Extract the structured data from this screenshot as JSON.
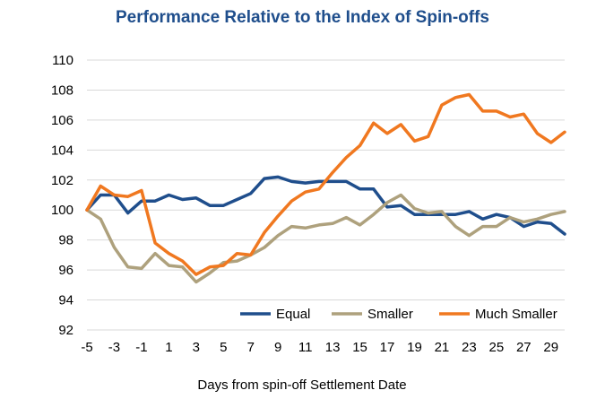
{
  "chart_data": {
    "type": "line",
    "title": "Performance Relative to the Index of Spin-offs",
    "xlabel": "Days from spin-off Settlement Date",
    "ylabel": "",
    "xlim": [
      -5,
      30
    ],
    "ylim": [
      92,
      110
    ],
    "x_ticks": [
      -5,
      -3,
      -1,
      1,
      3,
      5,
      7,
      9,
      11,
      13,
      15,
      17,
      19,
      21,
      23,
      25,
      27,
      29
    ],
    "y_ticks": [
      92,
      94,
      96,
      98,
      100,
      102,
      104,
      106,
      108,
      110
    ],
    "grid": "horizontal",
    "legend_position": "bottom-right",
    "x": [
      -5,
      -4,
      -3,
      -2,
      -1,
      0,
      1,
      2,
      3,
      4,
      5,
      6,
      7,
      8,
      9,
      10,
      11,
      12,
      13,
      14,
      15,
      16,
      17,
      18,
      19,
      20,
      21,
      22,
      23,
      24,
      25,
      26,
      27,
      28,
      29,
      30
    ],
    "series": [
      {
        "name": "Equal",
        "color": "#1f4e8c",
        "values": [
          100.0,
          101.0,
          101.0,
          99.8,
          100.6,
          100.6,
          101.0,
          100.7,
          100.8,
          100.3,
          100.3,
          100.7,
          101.1,
          102.1,
          102.2,
          101.9,
          101.8,
          101.9,
          101.9,
          101.9,
          101.4,
          101.4,
          100.2,
          100.3,
          99.7,
          99.7,
          99.7,
          99.7,
          99.9,
          99.4,
          99.7,
          99.5,
          98.9,
          99.2,
          99.1,
          98.4
        ]
      },
      {
        "name": "Smaller",
        "color": "#aea17d",
        "values": [
          100.0,
          99.4,
          97.5,
          96.2,
          96.1,
          97.1,
          96.3,
          96.2,
          95.2,
          95.8,
          96.5,
          96.6,
          97.0,
          97.5,
          98.3,
          98.9,
          98.8,
          99.0,
          99.1,
          99.5,
          99.0,
          99.7,
          100.5,
          101.0,
          100.1,
          99.8,
          99.9,
          98.9,
          98.3,
          98.9,
          98.9,
          99.5,
          99.2,
          99.4,
          99.7,
          99.9
        ]
      },
      {
        "name": "Much Smaller",
        "color": "#f07820",
        "values": [
          100.0,
          101.6,
          101.0,
          100.9,
          101.3,
          97.8,
          97.1,
          96.6,
          95.7,
          96.2,
          96.3,
          97.1,
          97.0,
          98.5,
          99.6,
          100.6,
          101.2,
          101.4,
          102.5,
          103.5,
          104.3,
          105.8,
          105.1,
          105.7,
          104.6,
          104.9,
          107.0,
          107.5,
          107.7,
          106.6,
          106.6,
          106.2,
          106.4,
          105.1,
          104.5,
          105.2
        ]
      }
    ]
  }
}
